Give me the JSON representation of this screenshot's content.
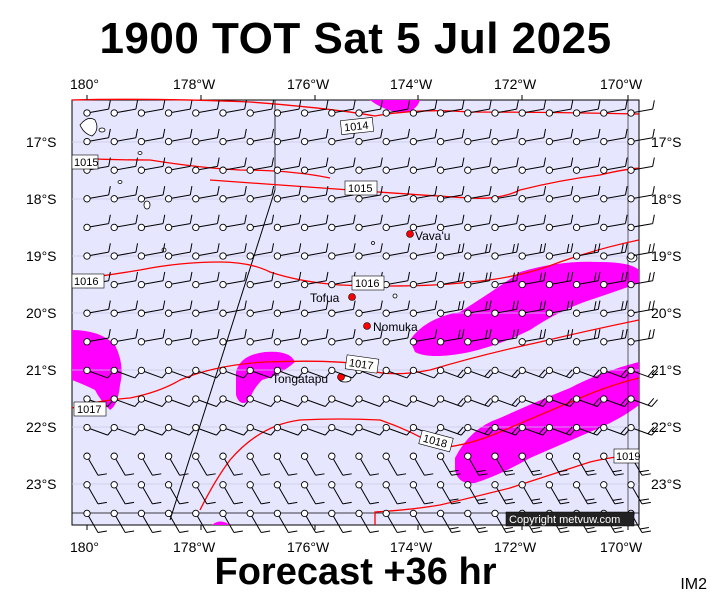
{
  "title": "1900 TOT Sat 5 Jul 2025",
  "footer": "Forecast +36 hr",
  "image_code": "IM2",
  "copyright": "Copyright metvuw.com",
  "axes": {
    "lon_labels": [
      "180°",
      "178°W",
      "176°W",
      "174°W",
      "172°W",
      "170°W"
    ],
    "lat_labels": [
      "17°S",
      "18°S",
      "19°S",
      "20°S",
      "21°S",
      "22°S",
      "23°S"
    ]
  },
  "isobars": [
    {
      "label": "1014",
      "value": 1014
    },
    {
      "label": "1015",
      "value": 1015
    },
    {
      "label": "1015",
      "value": 1015
    },
    {
      "label": "1016",
      "value": 1016
    },
    {
      "label": "1016",
      "value": 1016
    },
    {
      "label": "1017",
      "value": 1017
    },
    {
      "label": "1017",
      "value": 1017
    },
    {
      "label": "1018",
      "value": 1018
    },
    {
      "label": "1019",
      "value": 1019
    }
  ],
  "places": [
    {
      "name": "Vava'u"
    },
    {
      "name": "Tofua"
    },
    {
      "name": "Nomuka"
    },
    {
      "name": "Tongatapu"
    }
  ],
  "colors": {
    "sea": "#e6e6ff",
    "rain": "#ff00ff",
    "isobar": "#ff0000",
    "place_dot": "#ff0000",
    "wind": "#000000"
  },
  "legend": {
    "wind_barbs": "wind-barb-icon",
    "rain": "magenta shading"
  }
}
